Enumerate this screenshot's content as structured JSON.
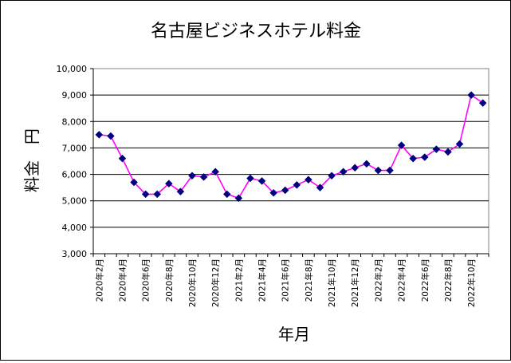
{
  "chart_data": {
    "type": "line",
    "title": "名古屋ビジネスホテル料金",
    "xlabel": "年月",
    "ylabel": "料金　円",
    "ylim": [
      3000,
      10000
    ],
    "yticks": [
      3000,
      4000,
      5000,
      6000,
      7000,
      8000,
      9000,
      10000
    ],
    "ytick_labels": [
      "3,000",
      "4,000",
      "5,000",
      "6,000",
      "7,000",
      "8,000",
      "9,000",
      "10,000"
    ],
    "grid": "horizontal",
    "x": [
      "2020年2月",
      "2020年3月",
      "2020年4月",
      "2020年5月",
      "2020年6月",
      "2020年7月",
      "2020年8月",
      "2020年9月",
      "2020年10月",
      "2020年11月",
      "2020年12月",
      "2021年1月",
      "2021年2月",
      "2021年3月",
      "2021年4月",
      "2021年5月",
      "2021年6月",
      "2021年7月",
      "2021年8月",
      "2021年9月",
      "2021年10月",
      "2021年11月",
      "2021年12月",
      "2022年1月",
      "2022年2月",
      "2022年3月",
      "2022年4月",
      "2022年5月",
      "2022年6月",
      "2022年7月",
      "2022年8月",
      "2022年9月",
      "2022年10月",
      "2022年11月"
    ],
    "xtick_labels": [
      "2020年2月",
      "2020年4月",
      "2020年6月",
      "2020年8月",
      "2020年10月",
      "2020年12月",
      "2021年2月",
      "2021年4月",
      "2021年6月",
      "2021年8月",
      "2021年10月",
      "2021年12月",
      "2022年2月",
      "2022年4月",
      "2022年6月",
      "2022年8月",
      "2022年10月"
    ],
    "series": [
      {
        "values": [
          7500,
          7450,
          6600,
          5700,
          5250,
          5250,
          5650,
          5350,
          5950,
          5900,
          6100,
          5250,
          5100,
          5850,
          5750,
          5300,
          5400,
          5600,
          5800,
          5500,
          5950,
          6100,
          6250,
          6400,
          6150,
          6150,
          7100,
          6600,
          6650,
          6950,
          6850,
          7150,
          9000,
          8700
        ],
        "line_color": "#ff00ff",
        "marker_color": "#000080",
        "marker": "diamond"
      }
    ]
  }
}
